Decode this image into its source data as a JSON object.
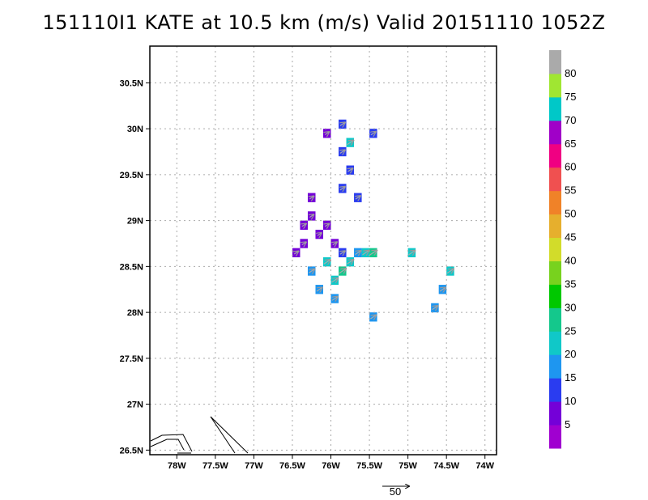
{
  "title": "151110I1 KATE at 10.5 km (m/s) Valid 20151110  1052Z",
  "chart_data": {
    "type": "heatmap",
    "title": "151110I1 KATE at 10.5 km (m/s) Valid 20151110  1052Z",
    "xlim": [
      -78.35,
      -73.85
    ],
    "ylim": [
      26.45,
      30.9
    ],
    "x_ticks": [
      {
        "value": -78.0,
        "label": "78W"
      },
      {
        "value": -77.5,
        "label": "77.5W"
      },
      {
        "value": -77.0,
        "label": "77W"
      },
      {
        "value": -76.5,
        "label": "76.5W"
      },
      {
        "value": -76.0,
        "label": "76W"
      },
      {
        "value": -75.5,
        "label": "75.5W"
      },
      {
        "value": -75.0,
        "label": "75W"
      },
      {
        "value": -74.5,
        "label": "74.5W"
      },
      {
        "value": -74.0,
        "label": "74W"
      }
    ],
    "y_ticks": [
      {
        "value": 26.5,
        "label": "26.5N"
      },
      {
        "value": 27.0,
        "label": "27N"
      },
      {
        "value": 27.5,
        "label": "27.5N"
      },
      {
        "value": 28.0,
        "label": "28N"
      },
      {
        "value": 28.5,
        "label": "28.5N"
      },
      {
        "value": 29.0,
        "label": "29N"
      },
      {
        "value": 29.5,
        "label": "29.5N"
      },
      {
        "value": 30.0,
        "label": "30N"
      },
      {
        "value": 30.5,
        "label": "30.5N"
      }
    ],
    "grid": true,
    "colorbar": {
      "colors": [
        "#a000d0",
        "#7400d8",
        "#2a3cf0",
        "#1e96f0",
        "#10c8c8",
        "#14c88c",
        "#00c800",
        "#78d21e",
        "#d2dc2a",
        "#e6af2d",
        "#f08228",
        "#f05050",
        "#f00082",
        "#a000c8",
        "#00c8c8",
        "#a0e632",
        "#aaaaaa"
      ],
      "labels": [
        "5",
        "10",
        "15",
        "20",
        "25",
        "30",
        "35",
        "40",
        "45",
        "50",
        "55",
        "60",
        "65",
        "70",
        "75",
        "80"
      ]
    },
    "wind_speed_cells": [
      {
        "lon": -76.45,
        "lat": 28.65,
        "value": 5
      },
      {
        "lon": -76.35,
        "lat": 28.75,
        "value": 5
      },
      {
        "lon": -76.35,
        "lat": 28.95,
        "value": 5
      },
      {
        "lon": -76.25,
        "lat": 29.05,
        "value": 5
      },
      {
        "lon": -76.25,
        "lat": 29.25,
        "value": 5
      },
      {
        "lon": -76.15,
        "lat": 28.85,
        "value": 5
      },
      {
        "lon": -76.05,
        "lat": 28.95,
        "value": 5
      },
      {
        "lon": -75.95,
        "lat": 28.75,
        "value": 5
      },
      {
        "lon": -76.05,
        "lat": 29.95,
        "value": 5
      },
      {
        "lon": -75.85,
        "lat": 28.65,
        "value": 10
      },
      {
        "lon": -75.85,
        "lat": 29.35,
        "value": 10
      },
      {
        "lon": -75.85,
        "lat": 29.75,
        "value": 10
      },
      {
        "lon": -75.85,
        "lat": 30.05,
        "value": 10
      },
      {
        "lon": -75.75,
        "lat": 29.55,
        "value": 10
      },
      {
        "lon": -75.65,
        "lat": 29.25,
        "value": 10
      },
      {
        "lon": -75.45,
        "lat": 29.95,
        "value": 10
      },
      {
        "lon": -76.25,
        "lat": 28.45,
        "value": 15
      },
      {
        "lon": -76.15,
        "lat": 28.25,
        "value": 15
      },
      {
        "lon": -75.95,
        "lat": 28.15,
        "value": 15
      },
      {
        "lon": -75.65,
        "lat": 28.65,
        "value": 15
      },
      {
        "lon": -75.45,
        "lat": 27.95,
        "value": 15
      },
      {
        "lon": -74.55,
        "lat": 28.25,
        "value": 15
      },
      {
        "lon": -74.65,
        "lat": 28.05,
        "value": 15
      },
      {
        "lon": -76.05,
        "lat": 28.55,
        "value": 20
      },
      {
        "lon": -75.95,
        "lat": 28.35,
        "value": 20
      },
      {
        "lon": -75.75,
        "lat": 28.55,
        "value": 20
      },
      {
        "lon": -75.55,
        "lat": 28.65,
        "value": 20
      },
      {
        "lon": -75.75,
        "lat": 29.85,
        "value": 20
      },
      {
        "lon": -74.95,
        "lat": 28.65,
        "value": 20
      },
      {
        "lon": -74.45,
        "lat": 28.45,
        "value": 20
      },
      {
        "lon": -75.85,
        "lat": 28.45,
        "value": 25
      },
      {
        "lon": -75.45,
        "lat": 28.65,
        "value": 25
      }
    ],
    "vector_scale": {
      "label": "50",
      "value": 50
    }
  }
}
